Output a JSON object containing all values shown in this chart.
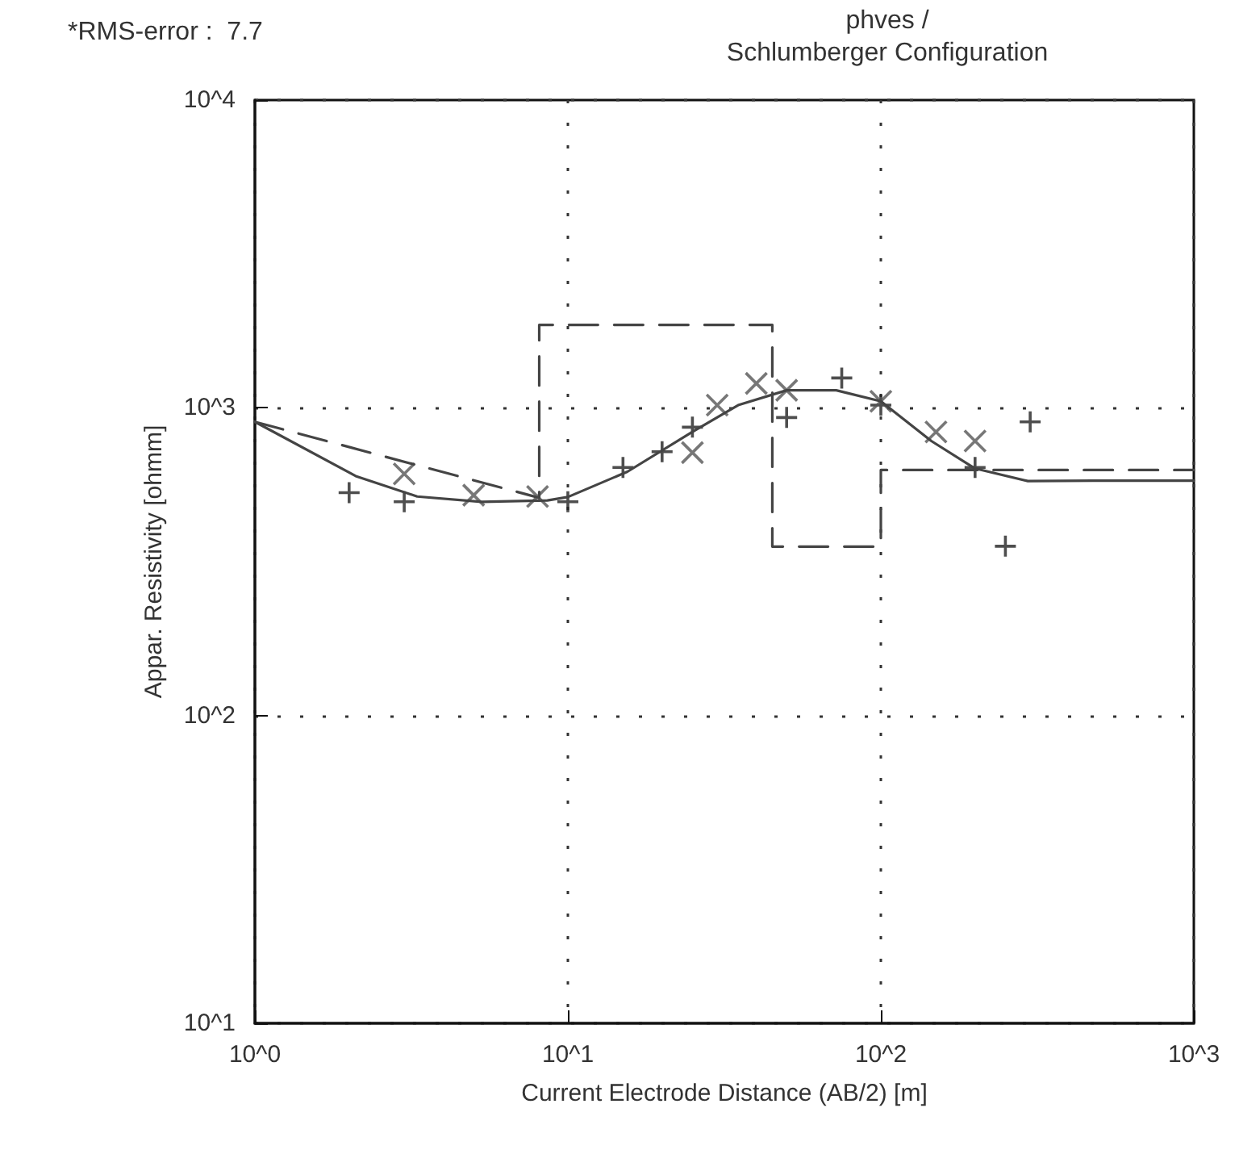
{
  "chart_data": {
    "type": "scatter",
    "title": "phves /",
    "subtitle": "Schlumberger Configuration",
    "xlabel": "Current Electrode Distance (AB/2) [m]",
    "ylabel": "Appar. Resistivity [ohmm]",
    "annotations": [
      "*RMS-error :  7.7"
    ],
    "log": "xy",
    "grid": true,
    "xlim": [
      1,
      1000
    ],
    "xticks": [
      {
        "value": 1,
        "label": "10^0"
      },
      {
        "value": 10,
        "label": "10^1"
      },
      {
        "value": 100,
        "label": "10^2"
      },
      {
        "value": 1000,
        "label": "10^3"
      }
    ],
    "ylim": [
      10,
      10000
    ],
    "yticks": [
      {
        "value": 10,
        "label": "10^1"
      },
      {
        "value": 100,
        "label": "10^2"
      },
      {
        "value": 1000,
        "label": "10^3"
      },
      {
        "value": 10000,
        "label": "10^4"
      }
    ],
    "series": [
      {
        "marker": "plus",
        "color": "#222222",
        "x": [
          2,
          3,
          10,
          15,
          20,
          25,
          50,
          75,
          100,
          200,
          250,
          300
        ],
        "values": [
          530,
          495,
          495,
          640,
          720,
          865,
          930,
          1250,
          1020,
          640,
          355,
          900
        ]
      },
      {
        "marker": "cross",
        "color": "#555555",
        "x": [
          3,
          5,
          8,
          25,
          30,
          40,
          50,
          100,
          150,
          200
        ],
        "values": [
          610,
          520,
          515,
          715,
          1020,
          1200,
          1140,
          1050,
          835,
          780
        ]
      },
      {
        "type": "line",
        "marker": "none",
        "line_style": "solid",
        "color": "#444444",
        "x": [
          1,
          2.1,
          3.3,
          5.3,
          8.6,
          10,
          15.5,
          25,
          35,
          50,
          72,
          100,
          145,
          200,
          295,
          475,
          1000
        ],
        "values": [
          900,
          600,
          515,
          495,
          500,
          513,
          620,
          835,
          1020,
          1140,
          1140,
          1050,
          780,
          635,
          578,
          580,
          580
        ]
      },
      {
        "type": "line",
        "marker": "none",
        "line_style": "dashed",
        "color": "#444444",
        "x": [
          1,
          8.1,
          8.1,
          45,
          45,
          100,
          100,
          1000
        ],
        "values": [
          900,
          510,
          1860,
          1860,
          354,
          354,
          628,
          628
        ]
      }
    ]
  }
}
